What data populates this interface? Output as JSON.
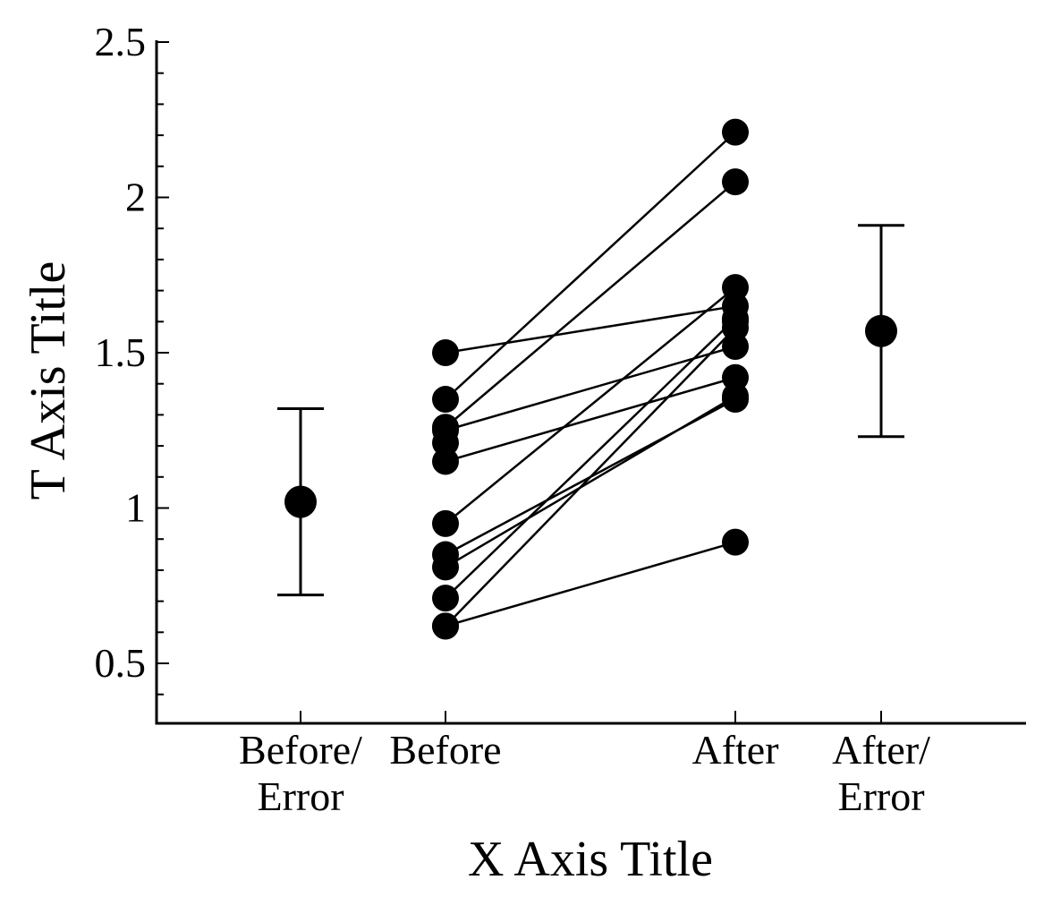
{
  "chart_data": {
    "type": "scatter",
    "title": "",
    "xlabel": "X Axis Title",
    "ylabel": "T Axis Title",
    "categories": [
      "Before/\nError",
      "Before",
      "After",
      "After/\nError"
    ],
    "ylim": [
      0.3,
      2.5
    ],
    "yticks": [
      0.5,
      1,
      1.5,
      2,
      2.5
    ],
    "ytick_labels": [
      "0.5",
      "1",
      "1.5",
      "2",
      "2.5"
    ],
    "grid": false,
    "legend": "none",
    "paired_series": {
      "name": "",
      "pairs": [
        {
          "before": 1.5,
          "after": 1.65
        },
        {
          "before": 1.35,
          "after": 2.21
        },
        {
          "before": 1.26,
          "after": 2.05
        },
        {
          "before": 1.25,
          "after": 1.52
        },
        {
          "before": 1.15,
          "after": 1.42
        },
        {
          "before": 0.95,
          "after": 1.71
        },
        {
          "before": 0.85,
          "after": 1.35
        },
        {
          "before": 0.81,
          "after": 1.36
        },
        {
          "before": 0.71,
          "after": 1.61
        },
        {
          "before": 0.62,
          "after": 1.58
        },
        {
          "before": 0.62,
          "after": 0.89
        }
      ]
    },
    "extra_points": [
      {
        "category": "Before",
        "value": 1.21
      },
      {
        "category": "After",
        "value": 1.6
      }
    ],
    "error_summary": [
      {
        "category": "Before/\nError",
        "mean": 1.02,
        "low": 0.72,
        "high": 1.32
      },
      {
        "category": "After/\nError",
        "mean": 1.57,
        "low": 1.23,
        "high": 1.91
      }
    ],
    "colors": {
      "marker": "#000000",
      "line": "#000000",
      "axis": "#000000"
    }
  }
}
